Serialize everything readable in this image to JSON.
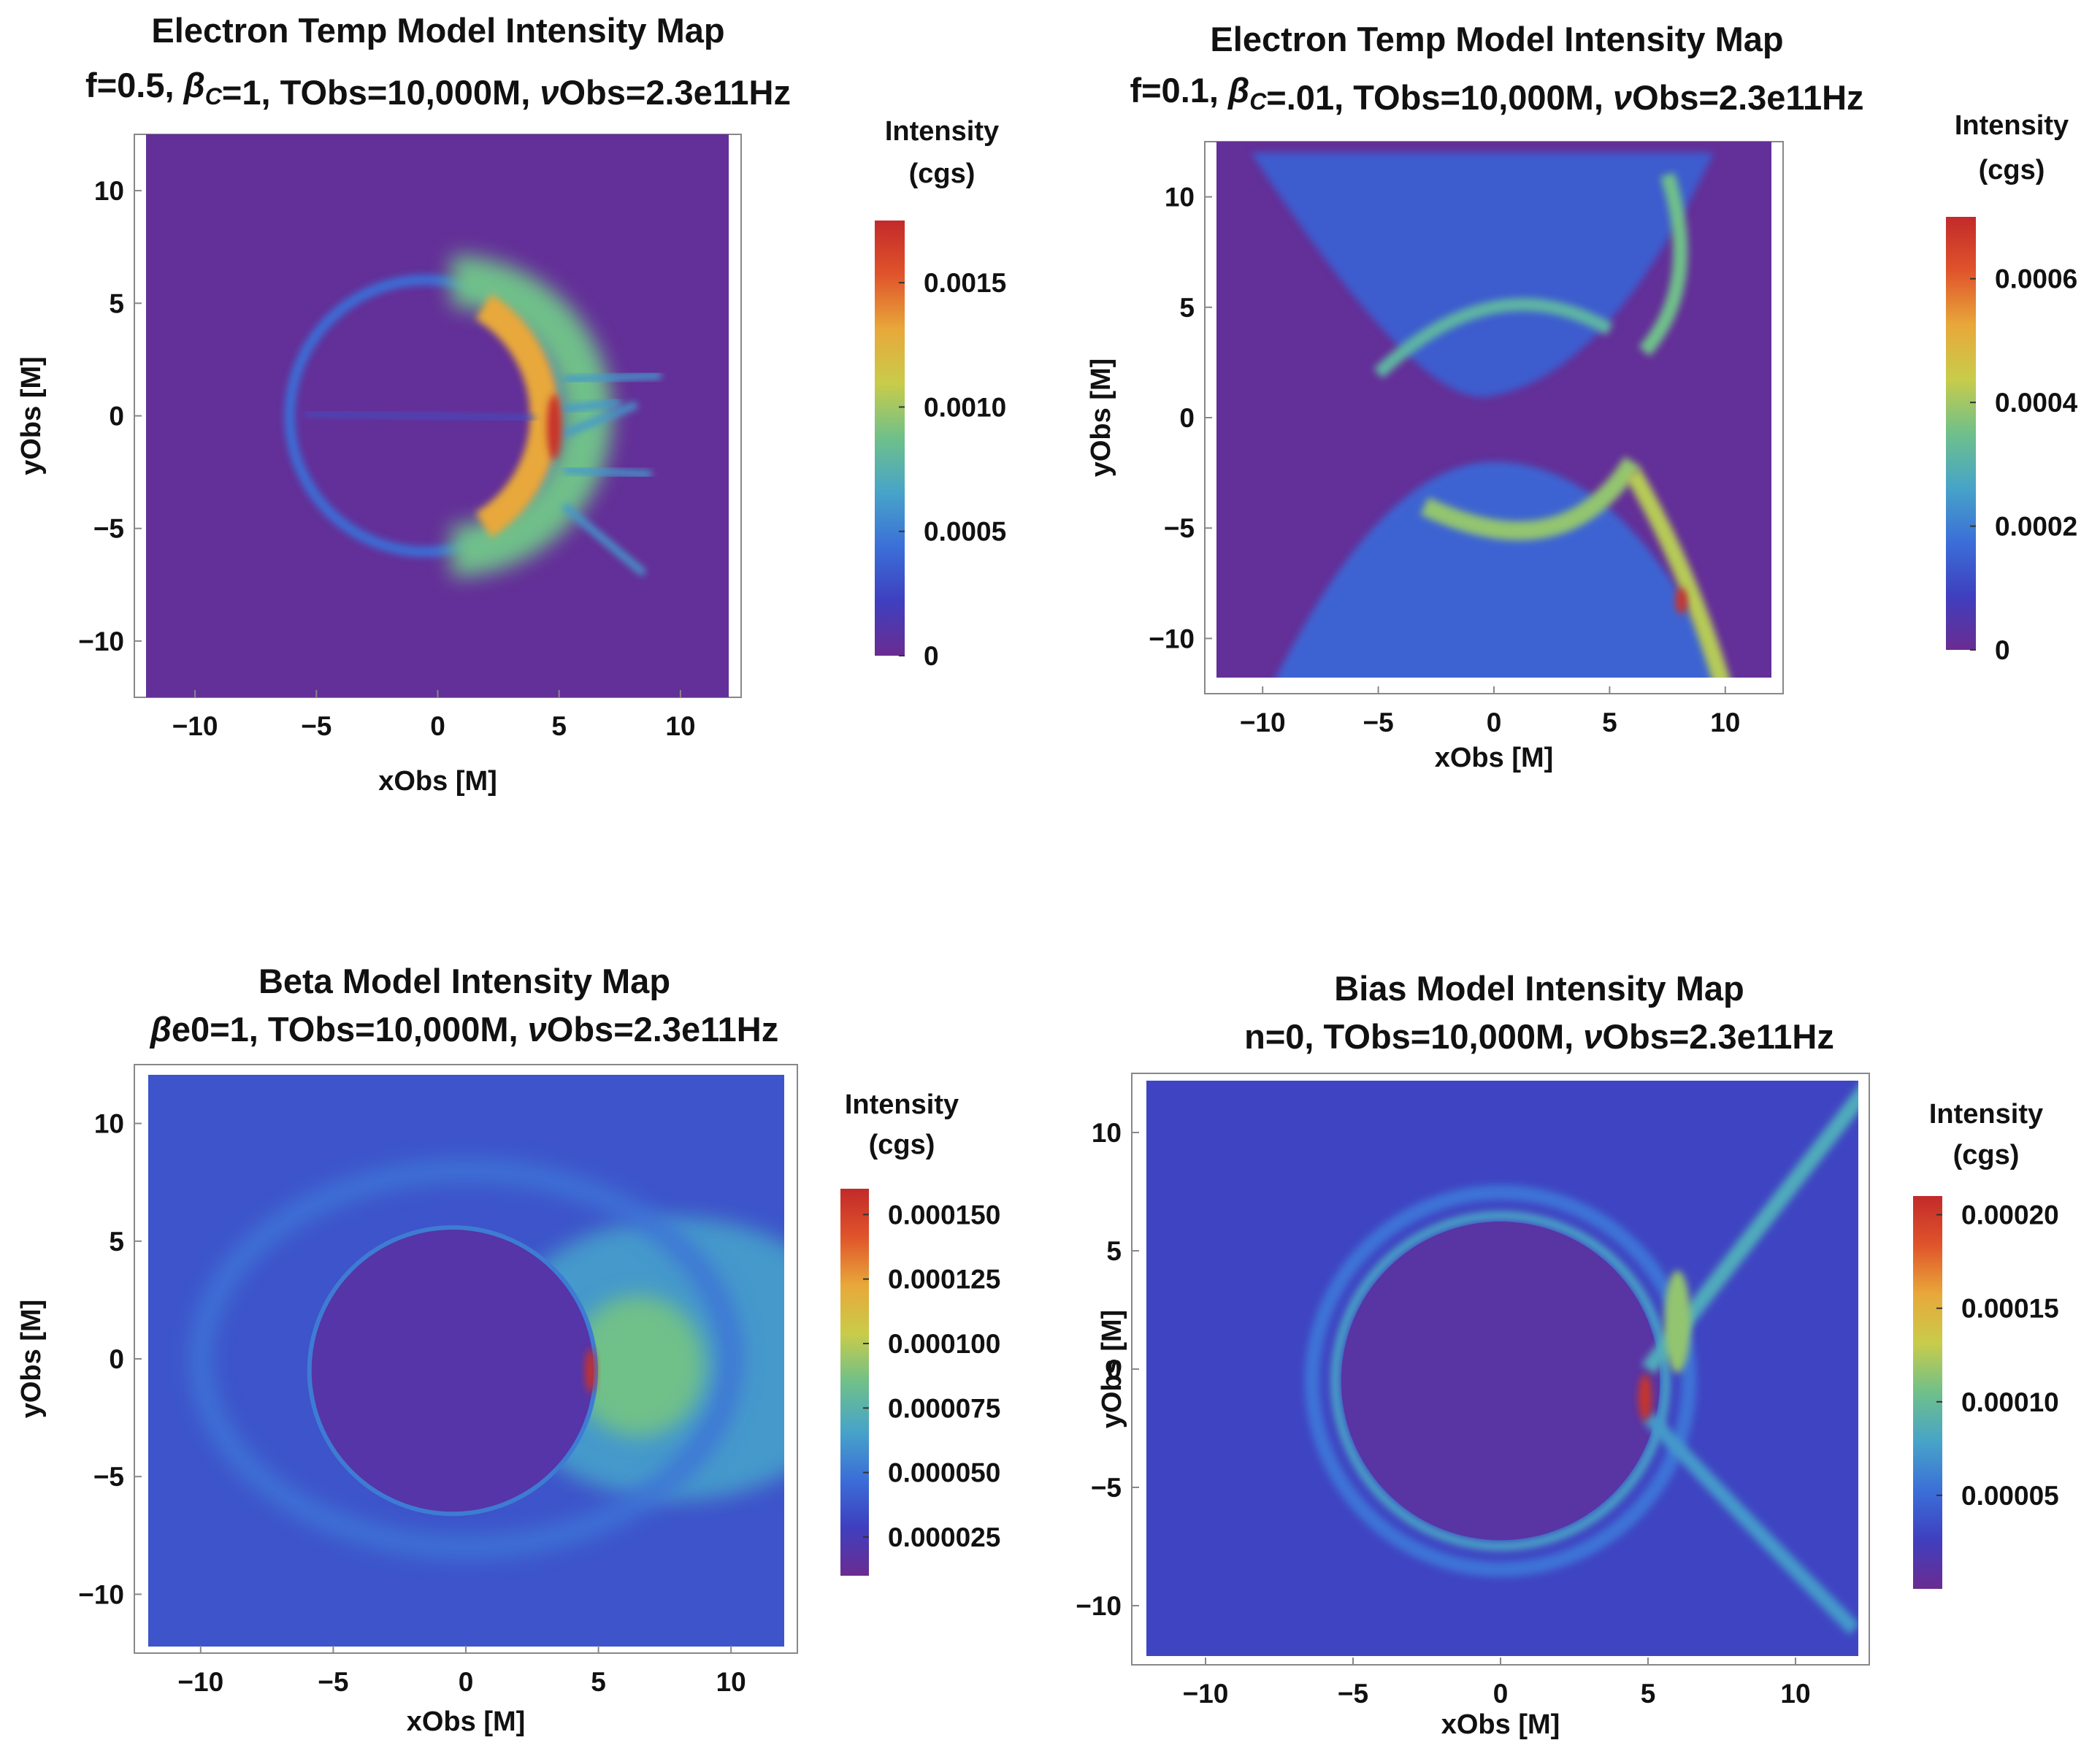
{
  "panels": [
    {
      "title": "Electron Temp Model Intensity Map",
      "subtitle": "f=0.5, βC=1, TObs=10,000M, νObs=2.3e11Hz",
      "colorbar_title": [
        "Intensity",
        "(cgs)"
      ]
    },
    {
      "title": "Electron Temp Model Intensity Map",
      "subtitle": "f=0.1, βC=.01, TObs=10,000M, νObs=2.3e11Hz",
      "colorbar_title": [
        "Intensity",
        "(cgs)"
      ]
    },
    {
      "title": "Beta Model Intensity Map",
      "subtitle": "βe0=1, TObs=10,000M, νObs=2.3e11Hz",
      "colorbar_title": [
        "Intensity",
        "(cgs)"
      ]
    },
    {
      "title": "Bias Model Intensity Map",
      "subtitle": "n=0, TObs=10,000M, νObs=2.3e11Hz",
      "colorbar_title": [
        "Intensity",
        "(cgs)"
      ]
    }
  ],
  "chart_data": [
    {
      "type": "heatmap",
      "title": "Electron Temp Model Intensity Map",
      "subtitle": "f=0.5, βC=1, TObs=10,000M, νObs=2.3e11Hz",
      "xlabel": "xObs [M]",
      "ylabel": "yObs [M]",
      "xlim": [
        -12.5,
        12.5
      ],
      "ylim": [
        -12.5,
        12.5
      ],
      "xticks": [
        -10,
        -5,
        0,
        5,
        10
      ],
      "yticks": [
        -10,
        -5,
        0,
        5,
        10
      ],
      "xtick_labels": [
        "−10",
        "−5",
        "0",
        "5",
        "10"
      ],
      "ytick_labels": [
        "−10",
        "−5",
        "0",
        "5",
        "10"
      ],
      "colorbar": {
        "min": 0,
        "max": 0.00175,
        "ticks": [
          0,
          0.0005,
          0.001,
          0.0015
        ],
        "tick_labels": [
          "0",
          "0.0005",
          "0.0010",
          "0.0015"
        ]
      },
      "features": {
        "shadow_center": [
          -0.5,
          0
        ],
        "shadow_radius": 5.3,
        "peak_x": 4.8,
        "peak_y": -0.5,
        "note": "bright crescent on right side of photon ring, faint left ring"
      }
    },
    {
      "type": "heatmap",
      "title": "Electron Temp Model Intensity Map",
      "subtitle": "f=0.1, βC=.01, TObs=10,000M, νObs=2.3e11Hz",
      "xlabel": "xObs [M]",
      "ylabel": "yObs [M]",
      "xlim": [
        -12.5,
        12.5
      ],
      "ylim": [
        -12.5,
        12.5
      ],
      "xticks": [
        -10,
        -5,
        0,
        5,
        10
      ],
      "yticks": [
        -10,
        -5,
        0,
        5,
        10
      ],
      "xtick_labels": [
        "−10",
        "−5",
        "0",
        "5",
        "10"
      ],
      "ytick_labels": [
        "−10",
        "−5",
        "0",
        "5",
        "10"
      ],
      "colorbar": {
        "min": 0,
        "max": 0.0007,
        "ticks": [
          0,
          0.0002,
          0.0004,
          0.0006
        ],
        "tick_labels": [
          "0",
          "0.0002",
          "0.0004",
          "0.0006"
        ]
      },
      "features": {
        "note": "hourglass-shaped jet emission, peak near (8, -8)"
      }
    },
    {
      "type": "heatmap",
      "title": "Beta Model Intensity Map",
      "subtitle": "βe0=1, TObs=10,000M, νObs=2.3e11Hz",
      "xlabel": "xObs [M]",
      "ylabel": "yObs [M]",
      "xlim": [
        -12.5,
        12.5
      ],
      "ylim": [
        -12.5,
        12.5
      ],
      "xticks": [
        -10,
        -5,
        0,
        5,
        10
      ],
      "yticks": [
        -10,
        -5,
        0,
        5,
        10
      ],
      "xtick_labels": [
        "−10",
        "−5",
        "0",
        "5",
        "10"
      ],
      "ytick_labels": [
        "−10",
        "−5",
        "0",
        "5",
        "10"
      ],
      "colorbar": {
        "min": 1e-05,
        "max": 0.00016,
        "ticks": [
          2.5e-05,
          5e-05,
          7.5e-05,
          0.0001,
          0.000125,
          0.00015
        ],
        "tick_labels": [
          "0.000025",
          "0.000050",
          "0.000075",
          "0.000100",
          "0.000125",
          "0.000150"
        ]
      },
      "features": {
        "shadow_center": [
          -0.5,
          -0.5
        ],
        "shadow_radius": 5.4,
        "peak_x": 4.7,
        "peak_y": -0.5,
        "note": "diffuse emission everywhere, brighter plume to the right"
      }
    },
    {
      "type": "heatmap",
      "title": "Bias Model Intensity Map",
      "subtitle": "n=0, TObs=10,000M, νObs=2.3e11Hz",
      "xlabel": "xObs [M]",
      "ylabel": "yObs [M]",
      "xlim": [
        -12.5,
        12.5
      ],
      "ylim": [
        -12.5,
        12.5
      ],
      "xticks": [
        -10,
        -5,
        0,
        5,
        10
      ],
      "yticks": [
        -10,
        -5,
        0,
        5,
        10
      ],
      "xtick_labels": [
        "−10",
        "−5",
        "0",
        "5",
        "10"
      ],
      "ytick_labels": [
        "−10",
        "−5",
        "0",
        "5",
        "10"
      ],
      "colorbar": {
        "min": 0,
        "max": 0.00021,
        "ticks": [
          5e-05,
          0.0001,
          0.00015,
          0.0002
        ],
        "tick_labels": [
          "0.00005",
          "0.00010",
          "0.00015",
          "0.00020"
        ]
      },
      "features": {
        "shadow_center": [
          0,
          -0.5
        ],
        "shadow_radius": 5.4,
        "peak_x": 4.9,
        "peak_y": -1.2,
        "note": "bright right edge, filament streaks toward upper-right and lower-right"
      }
    }
  ]
}
